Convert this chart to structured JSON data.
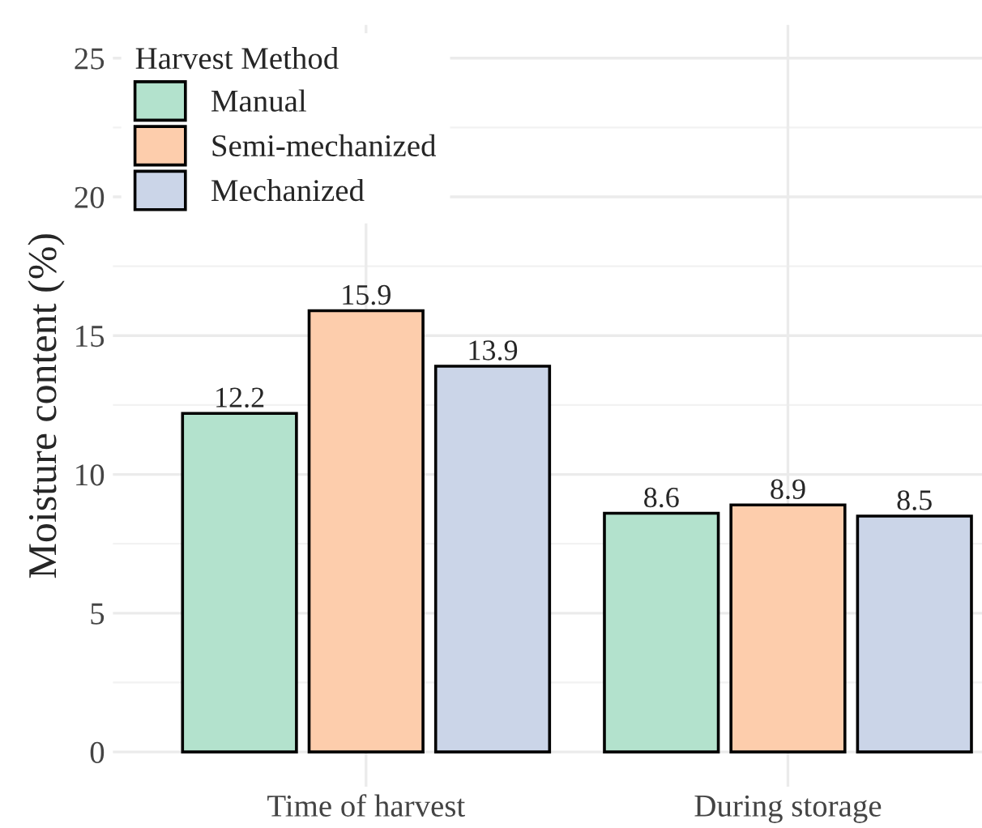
{
  "chart_data": {
    "type": "bar",
    "ylabel": "Moisture content (%)",
    "legend_title": "Harvest Method",
    "categories": [
      "Time of harvest",
      "During storage"
    ],
    "series": [
      {
        "name": "Manual",
        "color": "#b3e2cd",
        "values": [
          12.2,
          8.6
        ]
      },
      {
        "name": "Semi-mechanized",
        "color": "#fdcdac",
        "values": [
          15.9,
          8.9
        ]
      },
      {
        "name": "Mechanized",
        "color": "#cbd5e8",
        "values": [
          13.9,
          8.5
        ]
      }
    ],
    "ylim": [
      -1.25,
      26.2
    ],
    "yticks": [
      0,
      5,
      10,
      15,
      20,
      25
    ],
    "grid": true,
    "legend": "top left",
    "data_labels": true
  }
}
